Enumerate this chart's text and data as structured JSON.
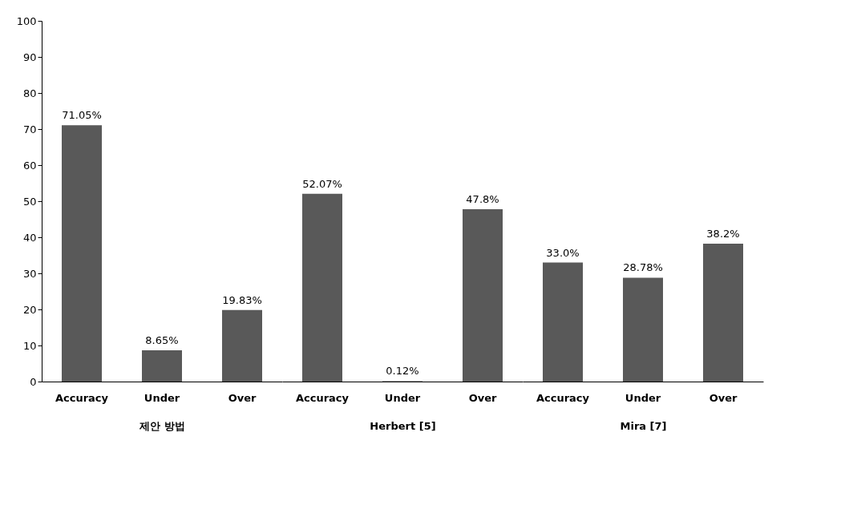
{
  "chart_data": [
    {
      "type": "bar",
      "xlabel": "제안 방법",
      "categories": [
        "Accuracy",
        "Under",
        "Over"
      ],
      "values": [
        71.05,
        8.65,
        19.83
      ],
      "value_labels": [
        "71.05%",
        "8.65%",
        "19.83%"
      ],
      "color": "#595959",
      "ylim": [
        0,
        100
      ],
      "yticks": [
        0,
        10,
        20,
        30,
        40,
        50,
        60,
        70,
        80,
        90,
        100
      ]
    },
    {
      "type": "bar",
      "xlabel": "Herbert [5]",
      "categories": [
        "Accuracy",
        "Under",
        "Over"
      ],
      "values": [
        52.07,
        0.12,
        47.8
      ],
      "value_labels": [
        "52.07%",
        "0.12%",
        "47.8%"
      ],
      "color": "#595959",
      "ylim": [
        0,
        100
      ],
      "yticks": [
        0,
        10,
        20,
        30,
        40,
        50,
        60,
        70,
        80,
        90,
        100
      ],
      "tick_labels": "x"
    },
    {
      "type": "bar",
      "xlabel": "Mira [7]",
      "categories": [
        "Accuracy",
        "Under",
        "Over"
      ],
      "values": [
        33.0,
        28.78,
        38.2
      ],
      "value_labels": [
        "33.0%",
        "28.78%",
        "38.2%"
      ],
      "color": "#595959",
      "ylim": [
        0,
        100
      ],
      "yticks": [
        0,
        10,
        20,
        30,
        40,
        50,
        60,
        70,
        80,
        90,
        100
      ],
      "tick_labels": "x"
    }
  ]
}
